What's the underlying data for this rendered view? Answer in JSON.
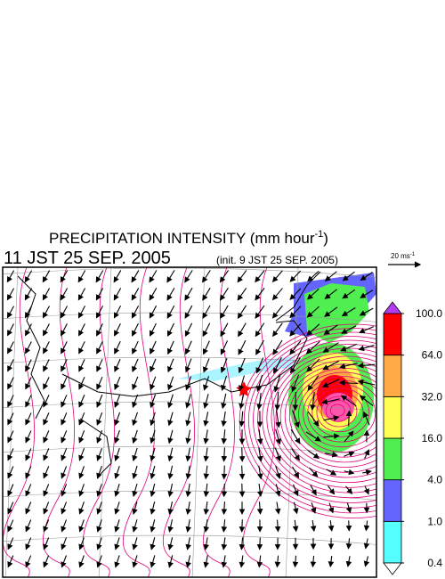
{
  "title": {
    "text": "PRECIPITATION INTENSITY (mm hour",
    "superscript": "-1",
    "suffix": ")"
  },
  "valid_time": "11 JST 25 SEP. 2005",
  "init_time": "(init. 9 JST 25 SEP. 2005)",
  "wind_scale": {
    "text": "20 ms",
    "superscript": "-1"
  },
  "colorbar": {
    "levels": [
      0.4,
      {
        "value": 1,
        "label": "1.0"
      },
      {
        "value": 4,
        "label": "4.0"
      },
      {
        "value": 16,
        "label": "16.0"
      },
      {
        "value": 32,
        "label": "32.0"
      },
      {
        "value": 64,
        "label": "64.0"
      },
      {
        "value": 100,
        "label": "100.0"
      }
    ],
    "colors": [
      "#55ffff",
      "#6464ff",
      "#50ee50",
      "#ffff55",
      "#ffaa44",
      "#ff0000"
    ],
    "over_color": "#b43cf0",
    "under_color": "#ffffff"
  }
}
